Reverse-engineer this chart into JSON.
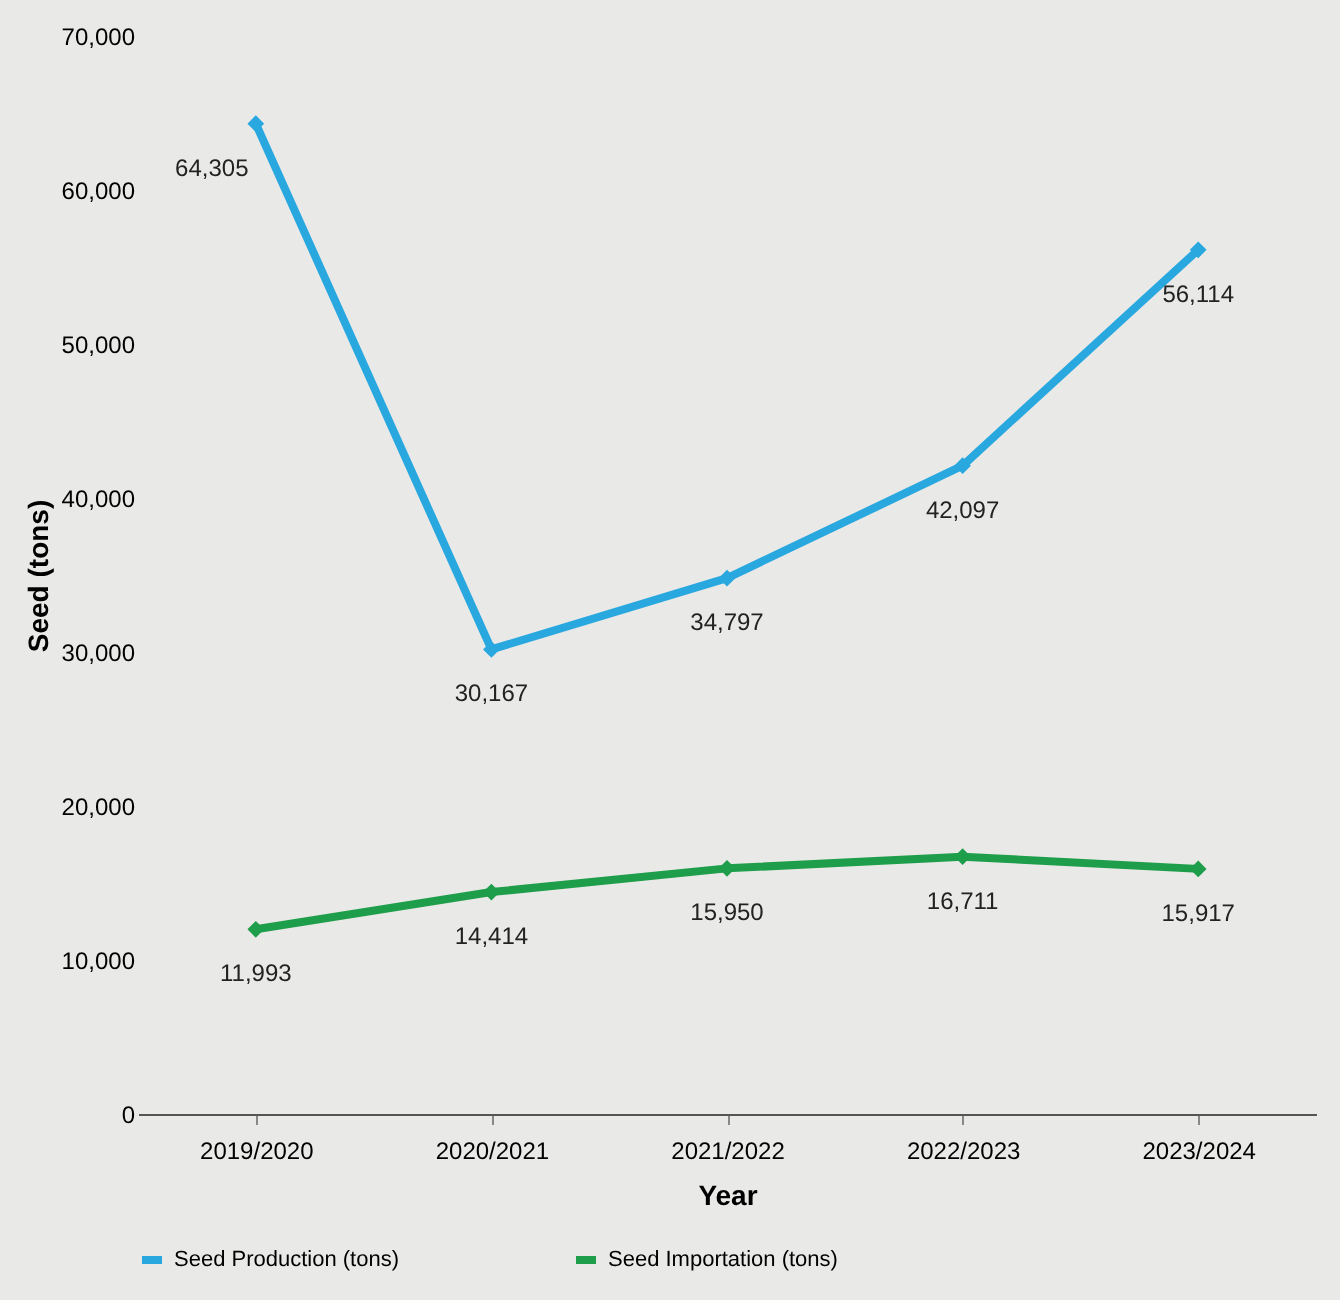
{
  "chart_data": {
    "type": "line",
    "xlabel": "Year",
    "ylabel": "Seed (tons)",
    "categories": [
      "2019/2020",
      "2020/2021",
      "2021/2022",
      "2022/2023",
      "2023/2024"
    ],
    "series": [
      {
        "name": "Seed Production (tons)",
        "color": "#29a8e0",
        "values": [
          64305,
          30167,
          34797,
          42097,
          56114
        ],
        "value_labels": [
          "64,305",
          "30,167",
          "34,797",
          "42,097",
          "56,114"
        ]
      },
      {
        "name": "Seed Importation (tons)",
        "color": "#1e9e4a",
        "values": [
          11993,
          14414,
          15950,
          16711,
          15917
        ],
        "value_labels": [
          "11,993",
          "14,414",
          "15,950",
          "16,711",
          "15,917"
        ]
      }
    ],
    "ylim": [
      0,
      70000
    ],
    "yticks": [
      {
        "value": 0,
        "label": "0"
      },
      {
        "value": 10000,
        "label": "10,000"
      },
      {
        "value": 20000,
        "label": "20,000"
      },
      {
        "value": 30000,
        "label": "30,000"
      },
      {
        "value": 40000,
        "label": "40,000"
      },
      {
        "value": 50000,
        "label": "50,000"
      },
      {
        "value": 60000,
        "label": "60,000"
      },
      {
        "value": 70000,
        "label": "70,000"
      }
    ],
    "grid": false,
    "legend": "bottom",
    "marker": "diamond",
    "line_style": "solid"
  }
}
